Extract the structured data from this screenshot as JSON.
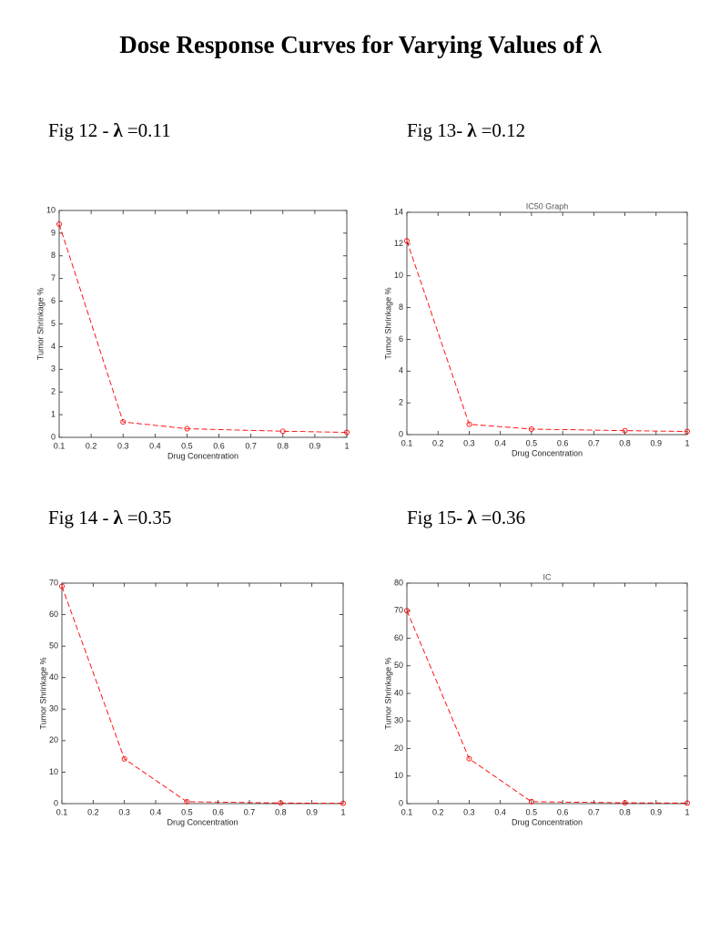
{
  "title": "Dose Response Curves for Varying Values of  λ",
  "figures": [
    {
      "label": "Fig 12 -",
      "symbol": "λ",
      "value": "=0.11"
    },
    {
      "label": "Fig 13-",
      "symbol": "λ",
      "value": "=0.12"
    },
    {
      "label": "Fig 14 -",
      "symbol": "λ",
      "value": "=0.35"
    },
    {
      "label": "Fig 15-",
      "symbol": "λ",
      "value": "=0.36"
    }
  ],
  "chart_data": [
    {
      "type": "line",
      "x_label": "Drug Concentration",
      "y_label": "Tumor Shrinkage %",
      "x": [
        0.1,
        0.3,
        0.5,
        0.8,
        1
      ],
      "values": [
        9.4,
        0.68,
        0.38,
        0.27,
        0.22
      ],
      "color": "#ff0000",
      "xlim": [
        0.1,
        1
      ],
      "xticks": [
        0.1,
        0.2,
        0.3,
        0.4,
        0.5,
        0.6,
        0.7,
        0.8,
        0.9,
        1
      ],
      "ylim": [
        0,
        10
      ],
      "yticks": [
        0,
        1,
        2,
        3,
        4,
        5,
        6,
        7,
        8,
        9,
        10
      ]
    },
    {
      "type": "line",
      "title": "IC50 Graph",
      "x_label": "Drug Concentration",
      "y_label": "Tumor Shrinkage %",
      "x": [
        0.1,
        0.3,
        0.5,
        0.8,
        1
      ],
      "values": [
        12.2,
        0.65,
        0.35,
        0.25,
        0.2
      ],
      "color": "#ff0000",
      "xlim": [
        0.1,
        1
      ],
      "xticks": [
        0.1,
        0.2,
        0.3,
        0.4,
        0.5,
        0.6,
        0.7,
        0.8,
        0.9,
        1
      ],
      "ylim": [
        0,
        14
      ],
      "yticks": [
        0,
        2,
        4,
        6,
        8,
        10,
        12,
        14
      ]
    },
    {
      "type": "line",
      "x_label": "Drug Concentration",
      "y_label": "Tumor Shrinkage %",
      "x": [
        0.1,
        0.3,
        0.5,
        0.8,
        1
      ],
      "values": [
        69,
        14.2,
        0.6,
        0.2,
        0.1
      ],
      "color": "#ff0000",
      "xlim": [
        0.1,
        1
      ],
      "xticks": [
        0.1,
        0.2,
        0.3,
        0.4,
        0.5,
        0.6,
        0.7,
        0.8,
        0.9,
        1
      ],
      "ylim": [
        0,
        70
      ],
      "yticks": [
        0,
        10,
        20,
        30,
        40,
        50,
        60,
        70
      ]
    },
    {
      "type": "line",
      "title": "IC",
      "x_label": "Drug Concentration",
      "y_label": "Tumor Shrinkage %",
      "x": [
        0.1,
        0.3,
        0.5,
        0.8,
        1
      ],
      "values": [
        70,
        16.3,
        0.7,
        0.3,
        0.2
      ],
      "color": "#ff0000",
      "xlim": [
        0.1,
        1
      ],
      "xticks": [
        0.1,
        0.2,
        0.3,
        0.4,
        0.5,
        0.6,
        0.7,
        0.8,
        0.9,
        1
      ],
      "ylim": [
        0,
        80
      ],
      "yticks": [
        0,
        10,
        20,
        30,
        40,
        50,
        60,
        70,
        80
      ]
    }
  ]
}
